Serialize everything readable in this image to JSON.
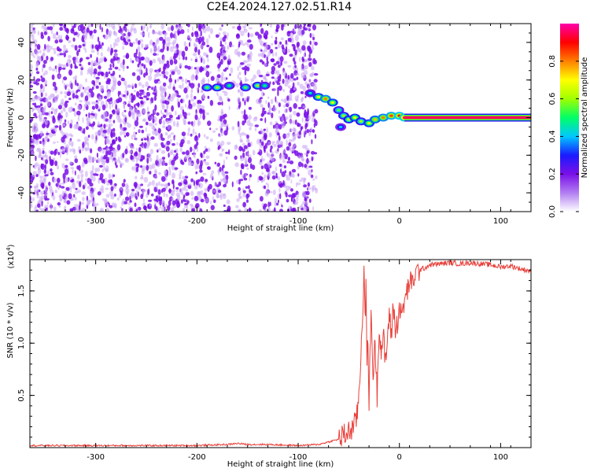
{
  "title": "C2E4.2024.127.02.51.R14",
  "colors": {
    "speckle": "#7a10e8",
    "speckle_light": "#c9a4f4",
    "snr_line": "#e8403a",
    "axis": "#000000"
  },
  "chart_data": [
    {
      "type": "heatmap",
      "title": "C2E4.2024.127.02.51.R14",
      "xlabel": "Height of straight line (km)",
      "ylabel": "Frequency (Hz)",
      "xlim": [
        -365,
        130
      ],
      "ylim": [
        -50,
        50
      ],
      "xticks": [
        -300,
        -200,
        -100,
        0,
        100
      ],
      "yticks": [
        -40,
        -20,
        0,
        20,
        40
      ],
      "colorbar": {
        "label": "Normalized spectral amplitude",
        "range": [
          0.0,
          1.0
        ],
        "ticks": [
          "0.0",
          "0.2",
          "0.4",
          "0.6",
          "0.8"
        ],
        "colormap": [
          "#ffffff",
          "#b27ef2",
          "#7a10e8",
          "#1a1aff",
          "#00c8ff",
          "#00ff66",
          "#a0ff00",
          "#ffff00",
          "#ff8000",
          "#ff0000",
          "#ff00aa"
        ]
      },
      "noise_extent_km": [
        -365,
        -82
      ],
      "noise_gap_km": [
        [
          -188,
          -180
        ],
        [
          -168,
          -160
        ],
        [
          -146,
          -138
        ]
      ],
      "signal_track": [
        {
          "x": -190,
          "y": 16,
          "a": 0.55
        },
        {
          "x": -180,
          "y": 16,
          "a": 0.6
        },
        {
          "x": -168,
          "y": 17,
          "a": 0.5
        },
        {
          "x": -152,
          "y": 16,
          "a": 0.55
        },
        {
          "x": -140,
          "y": 17,
          "a": 0.6
        },
        {
          "x": -133,
          "y": 17,
          "a": 0.5
        },
        {
          "x": -88,
          "y": 13,
          "a": 0.45
        },
        {
          "x": -80,
          "y": 11,
          "a": 0.7
        },
        {
          "x": -73,
          "y": 10,
          "a": 0.8
        },
        {
          "x": -66,
          "y": 8,
          "a": 0.7
        },
        {
          "x": -60,
          "y": 4,
          "a": 0.55
        },
        {
          "x": -55,
          "y": 1,
          "a": 0.6
        },
        {
          "x": -58,
          "y": -5,
          "a": 0.4
        },
        {
          "x": -50,
          "y": -1,
          "a": 0.65
        },
        {
          "x": -44,
          "y": 0,
          "a": 0.7
        },
        {
          "x": -38,
          "y": -2,
          "a": 0.6
        },
        {
          "x": -30,
          "y": -3,
          "a": 0.7
        },
        {
          "x": -24,
          "y": -1,
          "a": 0.75
        },
        {
          "x": -16,
          "y": 0,
          "a": 0.8
        },
        {
          "x": -8,
          "y": 1,
          "a": 0.85
        },
        {
          "x": 0,
          "y": 1,
          "a": 0.9
        },
        {
          "x": 5,
          "y": 0,
          "a": 0.95
        }
      ],
      "steady_line": {
        "x_start": 5,
        "x_end": 130,
        "y": 0,
        "a": 0.95
      }
    },
    {
      "type": "line",
      "xlabel": "Height of straight line (km)",
      "ylabel": "SNR (10 * v/v)",
      "scale_label": "(x10^4)",
      "scale_base": "(x10",
      "scale_exp": "4",
      "scale_close": ")",
      "xlim": [
        -365,
        130
      ],
      "ylim": [
        0,
        1.8
      ],
      "xticks": [
        -300,
        -200,
        -100,
        0,
        100
      ],
      "yticks": [
        "0.5",
        "1.0",
        "1.5"
      ],
      "ytick_values": [
        0.5,
        1.0,
        1.5
      ],
      "series": [
        {
          "x": [
            -365,
            -300,
            -250,
            -200,
            -170,
            -160,
            -150,
            -130,
            -100,
            -80,
            -60,
            -50,
            -45,
            -42,
            -40,
            -38,
            -36,
            -35,
            -34,
            -33,
            -32,
            -31,
            -30,
            -28,
            -26,
            -24,
            -22,
            -20,
            -18,
            -16,
            -14,
            -12,
            -10,
            -8,
            -6,
            -4,
            -2,
            0,
            2,
            5,
            8,
            10,
            12,
            15,
            20,
            25,
            30,
            40,
            50,
            60,
            70,
            80,
            90,
            100,
            110,
            120,
            130
          ],
          "y": [
            0.02,
            0.02,
            0.02,
            0.02,
            0.03,
            0.04,
            0.03,
            0.03,
            0.02,
            0.03,
            0.08,
            0.15,
            0.2,
            0.3,
            0.5,
            0.9,
            1.4,
            1.7,
            1.2,
            1.5,
            0.8,
            1.1,
            0.4,
            1.3,
            0.7,
            1.0,
            0.5,
            1.2,
            0.9,
            1.1,
            0.8,
            1.0,
            1.3,
            1.05,
            1.4,
            1.1,
            1.2,
            1.35,
            1.25,
            1.4,
            1.5,
            1.6,
            1.55,
            1.65,
            1.7,
            1.72,
            1.75,
            1.76,
            1.77,
            1.76,
            1.77,
            1.76,
            1.75,
            1.73,
            1.74,
            1.71,
            1.69
          ]
        }
      ]
    }
  ]
}
